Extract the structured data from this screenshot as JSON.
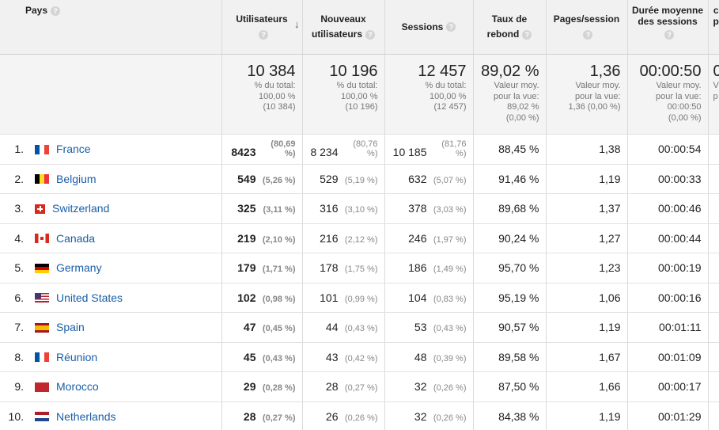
{
  "columns": {
    "country": "Pays",
    "users": [
      "Utilisateurs"
    ],
    "new_users": [
      "Nouveaux",
      "utilisateurs"
    ],
    "sessions": "Sessions",
    "bounce": [
      "Taux de",
      "rebond"
    ],
    "pages": "Pages/session",
    "duration": [
      "Durée moyenne",
      "des sessions"
    ],
    "cut_col": [
      "c",
      "p"
    ],
    "help_glyph": "?",
    "sort_glyph": "↓"
  },
  "totals": {
    "users": {
      "value": "10 384",
      "sub": [
        "% du total:",
        "100,00 %",
        "(10 384)"
      ]
    },
    "new_users": {
      "value": "10 196",
      "sub": [
        "% du total:",
        "100,00 %",
        "(10 196)"
      ]
    },
    "sessions": {
      "value": "12 457",
      "sub": [
        "% du total:",
        "100,00 %",
        "(12 457)"
      ]
    },
    "bounce": {
      "value": "89,02 %",
      "sub": [
        "Valeur moy.",
        "pour la vue:",
        "89,02 %",
        "(0,00 %)"
      ]
    },
    "pages": {
      "value": "1,36",
      "sub": [
        "Valeur moy.",
        "pour la vue:",
        "1,36 (0,00 %)"
      ]
    },
    "duration": {
      "value": "00:00:50",
      "sub": [
        "Valeur moy.",
        "pour la vue:",
        "00:00:50",
        "(0,00 %)"
      ]
    },
    "cut": {
      "value": "0",
      "sub": [
        "V",
        "p"
      ]
    }
  },
  "rows": [
    {
      "rank": "1.",
      "flag": "france-flag-icon",
      "flag_class": "f-fr",
      "country": "France",
      "users": "8423",
      "users_pct": "(80,69 %)",
      "new_users": "8 234",
      "new_users_pct": "(80,76 %)",
      "sessions": "10 185",
      "sessions_pct": "(81,76 %)",
      "bounce": "88,45 %",
      "pages": "1,38",
      "duration": "00:00:54"
    },
    {
      "rank": "2.",
      "flag": "belgium-flag-icon",
      "flag_class": "f-be",
      "country": "Belgium",
      "users": "549",
      "users_pct": "(5,26 %)",
      "new_users": "529",
      "new_users_pct": "(5,19 %)",
      "sessions": "632",
      "sessions_pct": "(5,07 %)",
      "bounce": "91,46 %",
      "pages": "1,19",
      "duration": "00:00:33"
    },
    {
      "rank": "3.",
      "flag": "switzerland-flag-icon",
      "flag_class": "f-ch",
      "country": "Switzerland",
      "users": "325",
      "users_pct": "(3,11 %)",
      "new_users": "316",
      "new_users_pct": "(3,10 %)",
      "sessions": "378",
      "sessions_pct": "(3,03 %)",
      "bounce": "89,68 %",
      "pages": "1,37",
      "duration": "00:00:46"
    },
    {
      "rank": "4.",
      "flag": "canada-flag-icon",
      "flag_class": "f-ca",
      "country": "Canada",
      "users": "219",
      "users_pct": "(2,10 %)",
      "new_users": "216",
      "new_users_pct": "(2,12 %)",
      "sessions": "246",
      "sessions_pct": "(1,97 %)",
      "bounce": "90,24 %",
      "pages": "1,27",
      "duration": "00:00:44"
    },
    {
      "rank": "5.",
      "flag": "germany-flag-icon",
      "flag_class": "f-de",
      "country": "Germany",
      "users": "179",
      "users_pct": "(1,71 %)",
      "new_users": "178",
      "new_users_pct": "(1,75 %)",
      "sessions": "186",
      "sessions_pct": "(1,49 %)",
      "bounce": "95,70 %",
      "pages": "1,23",
      "duration": "00:00:19"
    },
    {
      "rank": "6.",
      "flag": "united-states-flag-icon",
      "flag_class": "f-us",
      "country": "United States",
      "users": "102",
      "users_pct": "(0,98 %)",
      "new_users": "101",
      "new_users_pct": "(0,99 %)",
      "sessions": "104",
      "sessions_pct": "(0,83 %)",
      "bounce": "95,19 %",
      "pages": "1,06",
      "duration": "00:00:16"
    },
    {
      "rank": "7.",
      "flag": "spain-flag-icon",
      "flag_class": "f-es",
      "country": "Spain",
      "users": "47",
      "users_pct": "(0,45 %)",
      "new_users": "44",
      "new_users_pct": "(0,43 %)",
      "sessions": "53",
      "sessions_pct": "(0,43 %)",
      "bounce": "90,57 %",
      "pages": "1,19",
      "duration": "00:01:11"
    },
    {
      "rank": "8.",
      "flag": "reunion-flag-icon",
      "flag_class": "f-fr",
      "country": "Réunion",
      "users": "45",
      "users_pct": "(0,43 %)",
      "new_users": "43",
      "new_users_pct": "(0,42 %)",
      "sessions": "48",
      "sessions_pct": "(0,39 %)",
      "bounce": "89,58 %",
      "pages": "1,67",
      "duration": "00:01:09"
    },
    {
      "rank": "9.",
      "flag": "morocco-flag-icon",
      "flag_class": "f-ma",
      "country": "Morocco",
      "users": "29",
      "users_pct": "(0,28 %)",
      "new_users": "28",
      "new_users_pct": "(0,27 %)",
      "sessions": "32",
      "sessions_pct": "(0,26 %)",
      "bounce": "87,50 %",
      "pages": "1,66",
      "duration": "00:00:17"
    },
    {
      "rank": "10.",
      "flag": "netherlands-flag-icon",
      "flag_class": "f-nl",
      "country": "Netherlands",
      "users": "28",
      "users_pct": "(0,27 %)",
      "new_users": "26",
      "new_users_pct": "(0,26 %)",
      "sessions": "32",
      "sessions_pct": "(0,26 %)",
      "bounce": "84,38 %",
      "pages": "1,19",
      "duration": "00:01:29"
    }
  ]
}
